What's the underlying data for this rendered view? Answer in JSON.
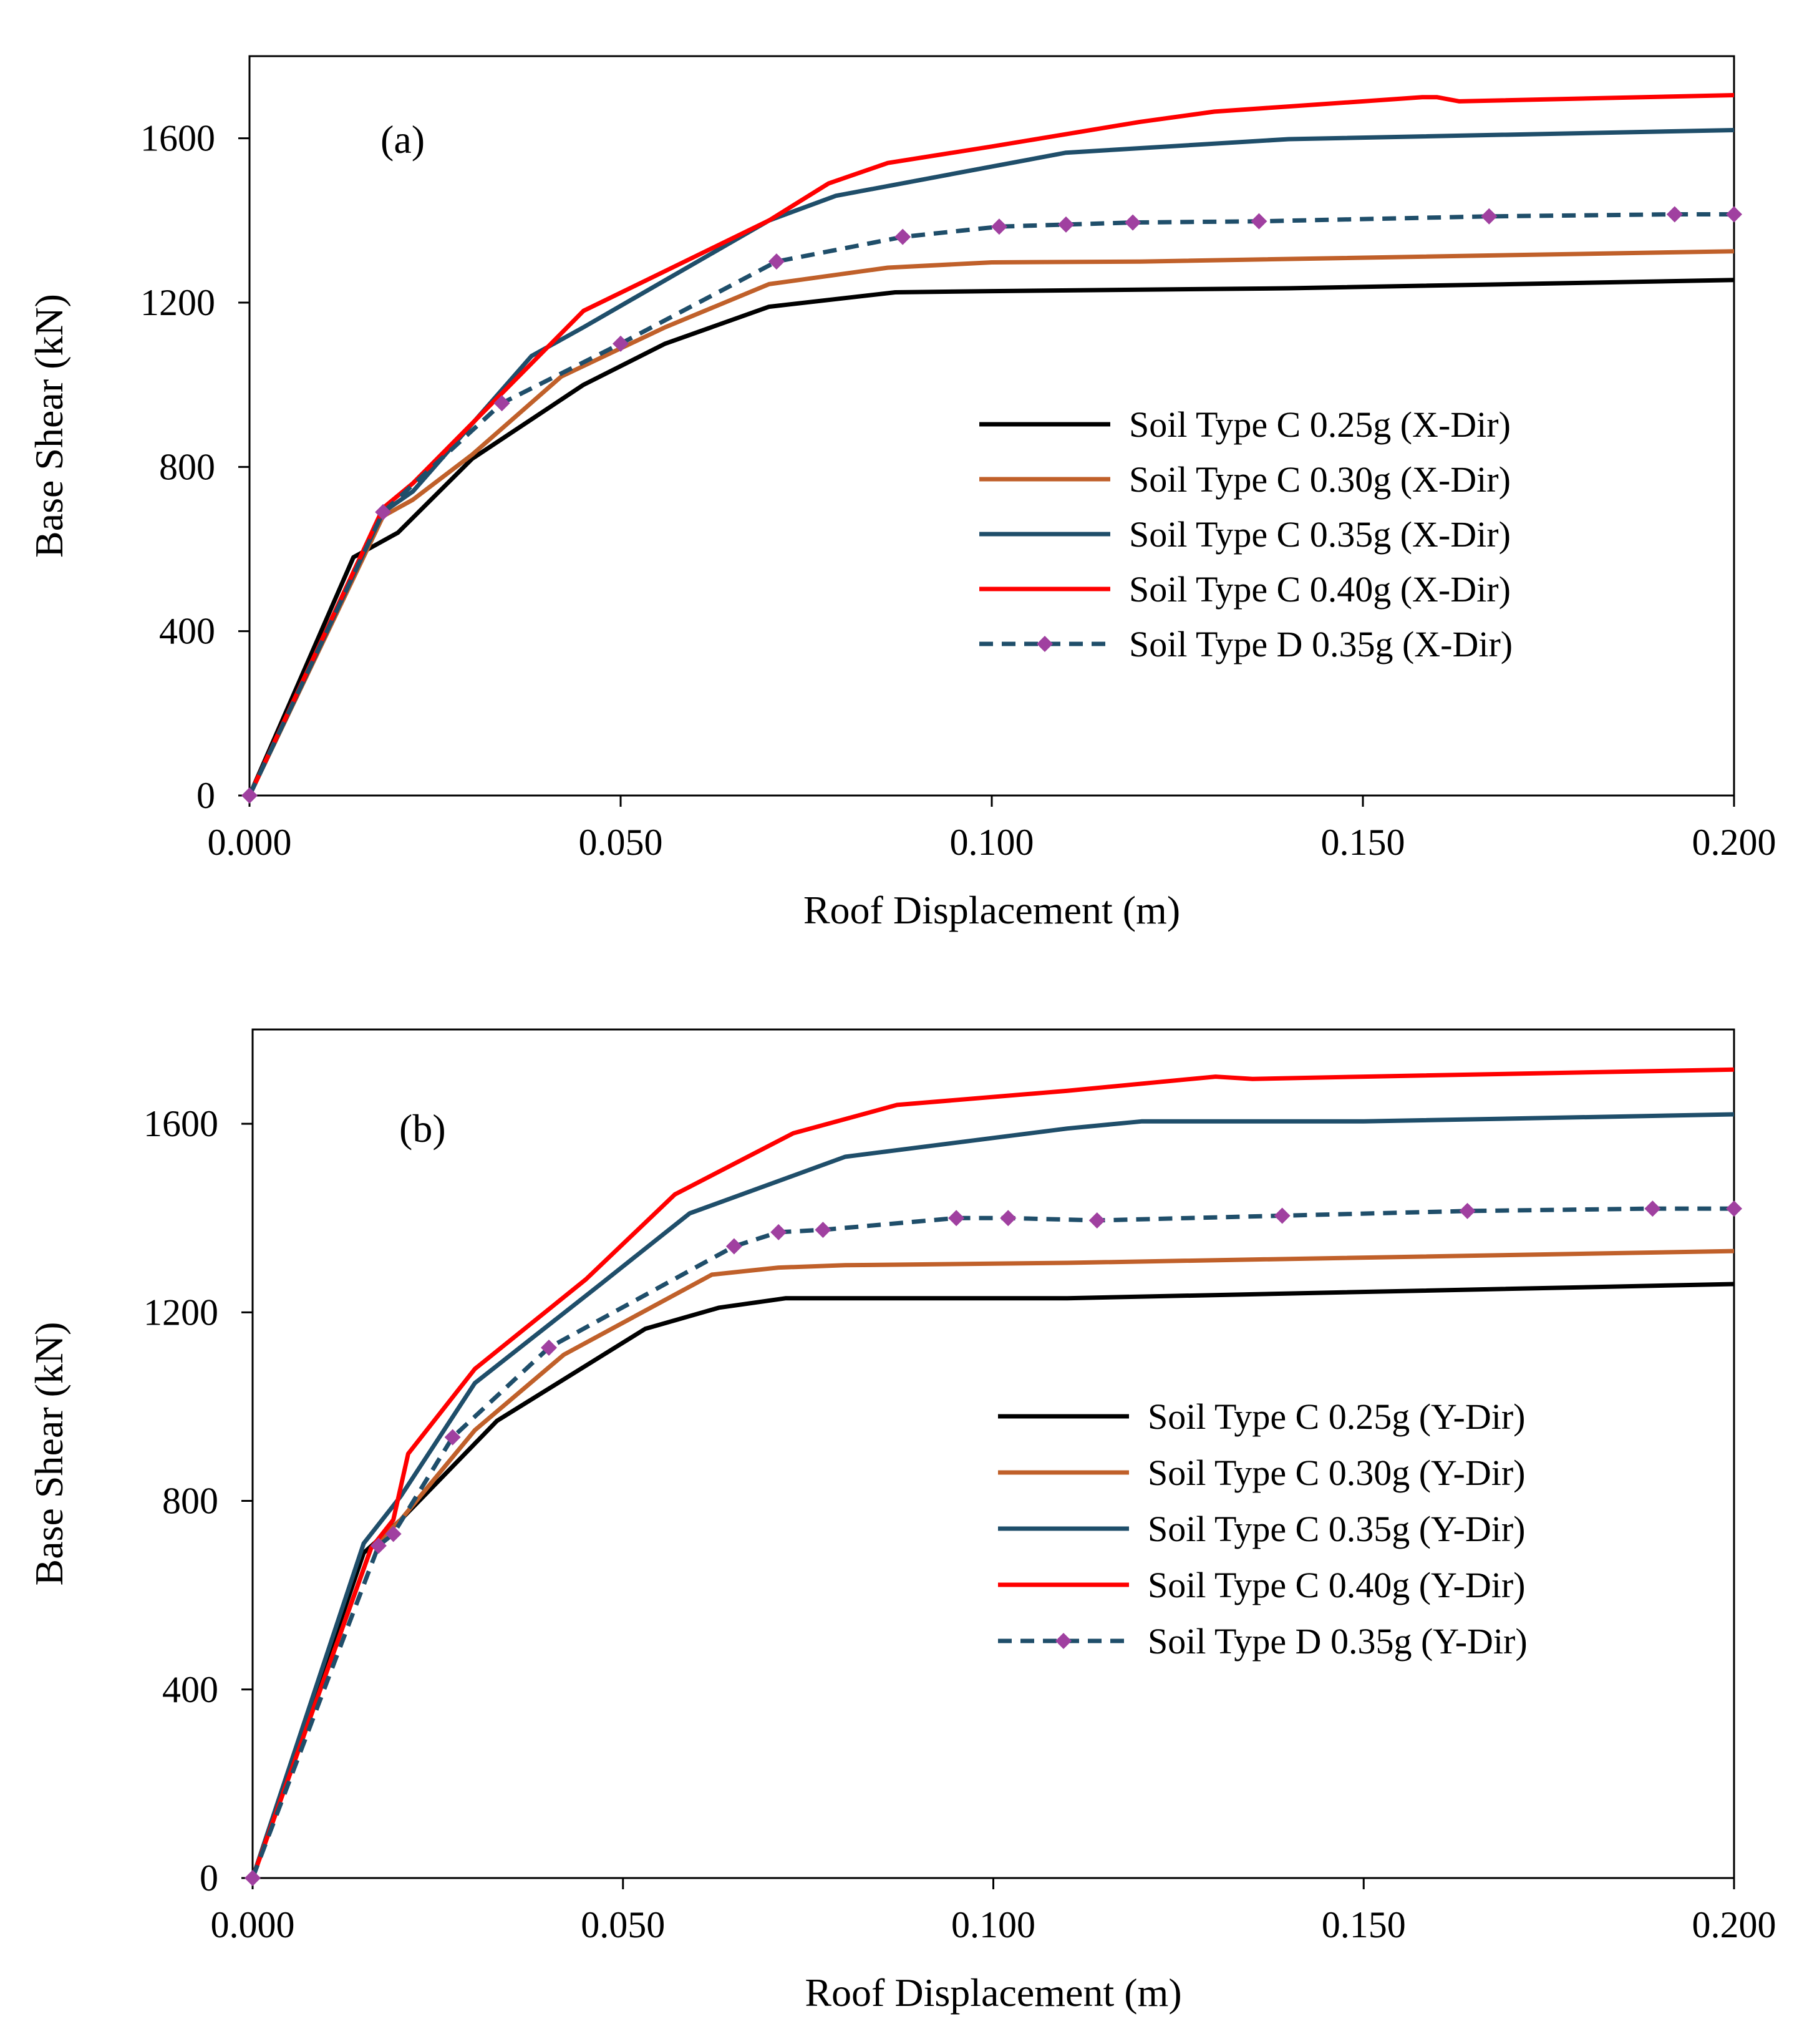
{
  "chart_data": [
    {
      "type": "line",
      "panel_label": "(a)",
      "xlabel": "Roof Displacement (m)",
      "ylabel": "Base Shear (kN)",
      "xlim": [
        0,
        0.2
      ],
      "ylim": [
        0,
        1800
      ],
      "x_ticks": [
        "0.000",
        "0.050",
        "0.100",
        "0.150",
        "0.200"
      ],
      "y_ticks": [
        "0",
        "400",
        "800",
        "1200",
        "1600"
      ],
      "legend_position": "center-right",
      "grid": false,
      "series": [
        {
          "name": "Soil Type C 0.25g (X-Dir)",
          "color": "#000000",
          "style": "solid",
          "marker": "none",
          "points": [
            [
              0,
              0
            ],
            [
              0.014,
              580
            ],
            [
              0.016,
              600
            ],
            [
              0.02,
              640
            ],
            [
              0.03,
              820
            ],
            [
              0.045,
              1000
            ],
            [
              0.056,
              1100
            ],
            [
              0.07,
              1190
            ],
            [
              0.087,
              1225
            ],
            [
              0.1,
              1228
            ],
            [
              0.14,
              1235
            ],
            [
              0.2,
              1255
            ]
          ]
        },
        {
          "name": "Soil Type C 0.30g (X-Dir)",
          "color": "#c0602a",
          "style": "solid",
          "marker": "none",
          "points": [
            [
              0,
              0
            ],
            [
              0.018,
              680
            ],
            [
              0.022,
              720
            ],
            [
              0.03,
              830
            ],
            [
              0.042,
              1020
            ],
            [
              0.056,
              1140
            ],
            [
              0.07,
              1245
            ],
            [
              0.086,
              1285
            ],
            [
              0.1,
              1298
            ],
            [
              0.12,
              1300
            ],
            [
              0.2,
              1325
            ]
          ]
        },
        {
          "name": "Soil Type C 0.35g (X-Dir)",
          "color": "#1f4e6a",
          "style": "solid",
          "marker": "none",
          "points": [
            [
              0,
              0
            ],
            [
              0.018,
              690
            ],
            [
              0.022,
              740
            ],
            [
              0.038,
              1070
            ],
            [
              0.045,
              1140
            ],
            [
              0.07,
              1400
            ],
            [
              0.079,
              1460
            ],
            [
              0.11,
              1565
            ],
            [
              0.14,
              1598
            ],
            [
              0.2,
              1620
            ]
          ]
        },
        {
          "name": "Soil Type C 0.40g (X-Dir)",
          "color": "#ff0000",
          "style": "solid",
          "marker": "none",
          "points": [
            [
              0,
              0
            ],
            [
              0.018,
              700
            ],
            [
              0.022,
              760
            ],
            [
              0.045,
              1180
            ],
            [
              0.07,
              1400
            ],
            [
              0.078,
              1490
            ],
            [
              0.086,
              1540
            ],
            [
              0.1,
              1580
            ],
            [
              0.12,
              1640
            ],
            [
              0.13,
              1665
            ],
            [
              0.158,
              1700
            ],
            [
              0.16,
              1700
            ],
            [
              0.163,
              1690
            ],
            [
              0.2,
              1705
            ]
          ]
        },
        {
          "name": "Soil Type D 0.35g (X-Dir)",
          "color": "#1f4e6a",
          "style": "dashed",
          "marker": "diamond",
          "marker_color": "#a040a0",
          "points": [
            [
              0,
              0
            ],
            [
              0.018,
              690
            ],
            [
              0.034,
              955
            ],
            [
              0.05,
              1100
            ],
            [
              0.071,
              1300
            ],
            [
              0.088,
              1360
            ],
            [
              0.101,
              1385
            ],
            [
              0.11,
              1390
            ],
            [
              0.119,
              1395
            ],
            [
              0.136,
              1398
            ],
            [
              0.167,
              1410
            ],
            [
              0.192,
              1415
            ],
            [
              0.2,
              1415
            ]
          ]
        }
      ]
    },
    {
      "type": "line",
      "panel_label": "(b)",
      "xlabel": "Roof Displacement (m)",
      "ylabel": "Base Shear (kN)",
      "xlim": [
        0,
        0.2
      ],
      "ylim": [
        0,
        1800
      ],
      "x_ticks": [
        "0.000",
        "0.050",
        "0.100",
        "0.150",
        "0.200"
      ],
      "y_ticks": [
        "0",
        "400",
        "800",
        "1200",
        "1600"
      ],
      "legend_position": "center-right",
      "grid": false,
      "series": [
        {
          "name": "Soil Type C 0.25g (Y-Dir)",
          "color": "#000000",
          "style": "solid",
          "marker": "none",
          "points": [
            [
              0,
              0
            ],
            [
              0.015,
              690
            ],
            [
              0.02,
              760
            ],
            [
              0.033,
              970
            ],
            [
              0.053,
              1165
            ],
            [
              0.063,
              1210
            ],
            [
              0.072,
              1230
            ],
            [
              0.11,
              1230
            ],
            [
              0.14,
              1240
            ],
            [
              0.2,
              1260
            ]
          ]
        },
        {
          "name": "Soil Type C 0.30g (Y-Dir)",
          "color": "#c0602a",
          "style": "solid",
          "marker": "none",
          "points": [
            [
              0,
              0
            ],
            [
              0.016,
              700
            ],
            [
              0.02,
              760
            ],
            [
              0.03,
              950
            ],
            [
              0.042,
              1110
            ],
            [
              0.062,
              1280
            ],
            [
              0.065,
              1285
            ],
            [
              0.071,
              1295
            ],
            [
              0.08,
              1300
            ],
            [
              0.11,
              1305
            ],
            [
              0.2,
              1330
            ]
          ]
        },
        {
          "name": "Soil Type C 0.35g (Y-Dir)",
          "color": "#1f4e6a",
          "style": "solid",
          "marker": "none",
          "points": [
            [
              0,
              0
            ],
            [
              0.015,
              710
            ],
            [
              0.02,
              810
            ],
            [
              0.03,
              1050
            ],
            [
              0.047,
              1260
            ],
            [
              0.059,
              1410
            ],
            [
              0.08,
              1530
            ],
            [
              0.11,
              1590
            ],
            [
              0.12,
              1605
            ],
            [
              0.15,
              1605
            ],
            [
              0.2,
              1620
            ]
          ]
        },
        {
          "name": "Soil Type C 0.40g (Y-Dir)",
          "color": "#ff0000",
          "style": "solid",
          "marker": "none",
          "points": [
            [
              0,
              0
            ],
            [
              0.016,
              700
            ],
            [
              0.019,
              760
            ],
            [
              0.021,
              900
            ],
            [
              0.03,
              1080
            ],
            [
              0.045,
              1270
            ],
            [
              0.057,
              1450
            ],
            [
              0.073,
              1580
            ],
            [
              0.087,
              1640
            ],
            [
              0.11,
              1670
            ],
            [
              0.13,
              1700
            ],
            [
              0.135,
              1695
            ],
            [
              0.15,
              1700
            ],
            [
              0.2,
              1715
            ]
          ]
        },
        {
          "name": "Soil Type D 0.35g (Y-Dir)",
          "color": "#1f4e6a",
          "style": "dashed",
          "marker": "diamond",
          "marker_color": "#a040a0",
          "points": [
            [
              0,
              0
            ],
            [
              0.017,
              705
            ],
            [
              0.019,
              730
            ],
            [
              0.027,
              935
            ],
            [
              0.04,
              1125
            ],
            [
              0.065,
              1340
            ],
            [
              0.071,
              1370
            ],
            [
              0.077,
              1375
            ],
            [
              0.095,
              1400
            ],
            [
              0.102,
              1400
            ],
            [
              0.114,
              1395
            ],
            [
              0.139,
              1405
            ],
            [
              0.164,
              1415
            ],
            [
              0.189,
              1420
            ],
            [
              0.2,
              1420
            ]
          ]
        }
      ]
    }
  ]
}
